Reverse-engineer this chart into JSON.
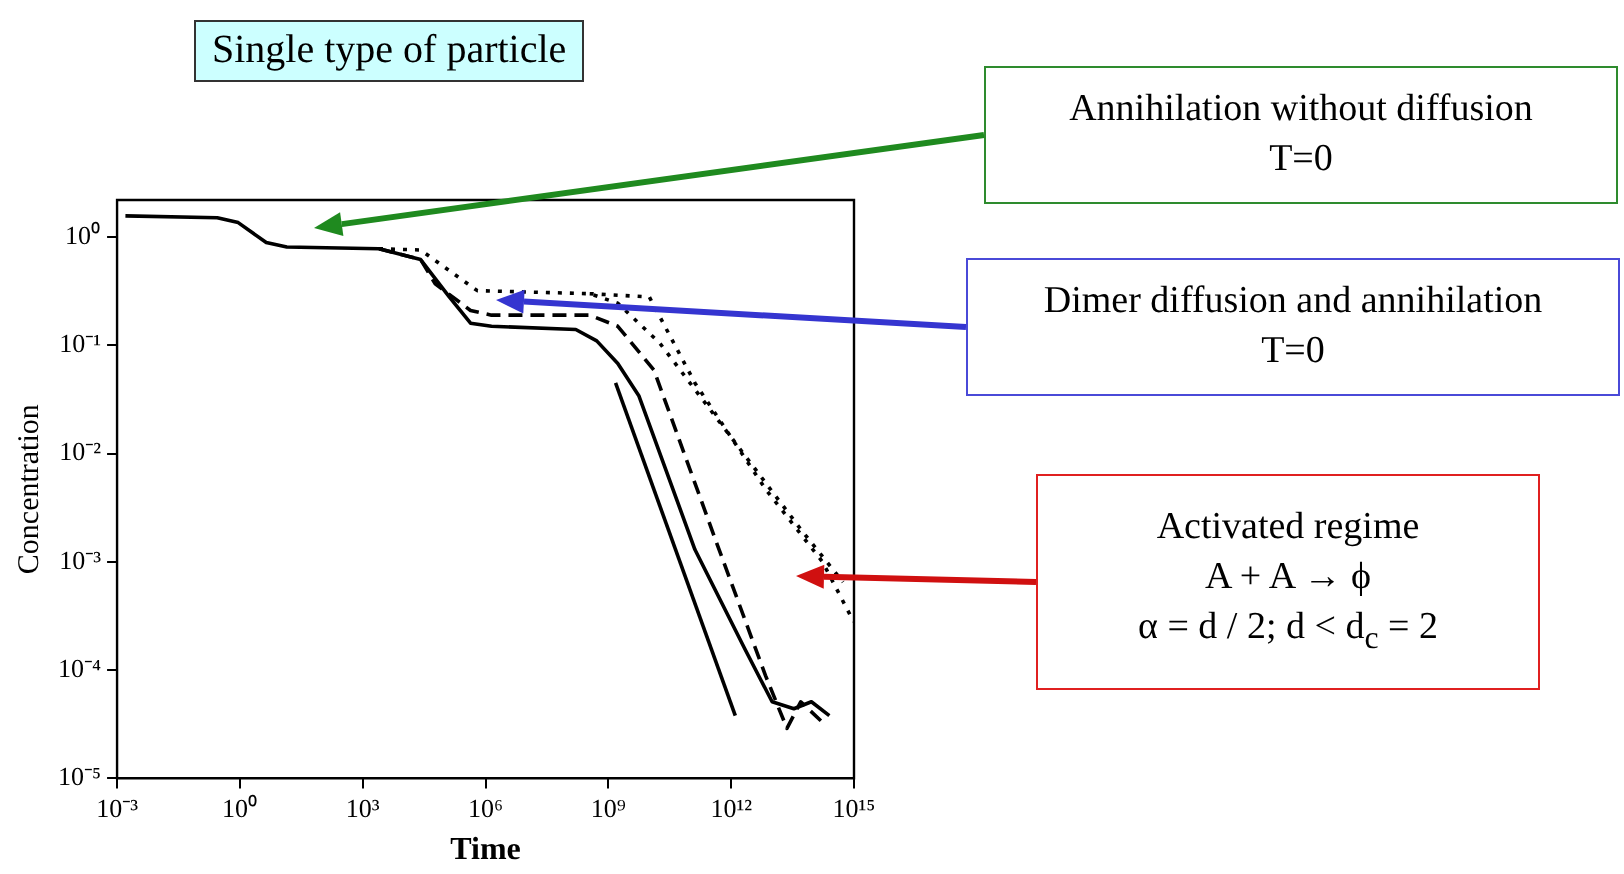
{
  "chart_data": {
    "type": "line",
    "title": "Single type of particle",
    "xlabel": "Time",
    "ylabel": "Concentration",
    "log": "xy",
    "grid": false,
    "legend": false,
    "marker": "none",
    "xlim": [
      0.001,
      1000000000000000.0
    ],
    "xticks": [
      {
        "value": 0.001,
        "label": "10⁻³"
      },
      {
        "value": 1,
        "label": "10⁰"
      },
      {
        "value": 1000,
        "label": "10³"
      },
      {
        "value": 1000000,
        "label": "10⁶"
      },
      {
        "value": 1000000000,
        "label": "10⁹"
      },
      {
        "value": 1000000000000,
        "label": "10¹²"
      },
      {
        "value": 1000000000000000.0,
        "label": "10¹⁵"
      }
    ],
    "ylim": [
      1e-05,
      2.2
    ],
    "yticks": [
      {
        "value": 1e-05,
        "label": "10⁻⁵"
      },
      {
        "value": 0.0001,
        "label": "10⁻⁴"
      },
      {
        "value": 0.001,
        "label": "10⁻³"
      },
      {
        "value": 0.01,
        "label": "10⁻²"
      },
      {
        "value": 0.1,
        "label": "10⁻¹"
      },
      {
        "value": 1,
        "label": "10⁰"
      }
    ],
    "series": [
      {
        "color": "#000000",
        "line_style": "solid",
        "x": [
          0.0016,
          0.28,
          0.91,
          4.4,
          14,
          2500,
          26000,
          130000,
          430000,
          1400000,
          160000000,
          520000000,
          1700000000,
          5600000000,
          130000000000,
          2100000000000,
          10000000000000,
          34000000000000,
          91000000000000,
          250000000000000
        ],
        "values": [
          1.57,
          1.51,
          1.36,
          0.89,
          0.81,
          0.78,
          0.62,
          0.28,
          0.16,
          0.15,
          0.14,
          0.11,
          0.068,
          0.034,
          0.0013,
          0.00016,
          5.1e-05,
          4.4e-05,
          5.1e-05,
          3.8e-05
        ]
      },
      {
        "color": "#000000",
        "line_style": "dashed",
        "x": [
          2500,
          26000,
          59000,
          430000,
          1400000,
          350000000,
          1700000000,
          13000000000,
          440000000000,
          6900000000000,
          23000000000000,
          50000000000000,
          170000000000000
        ],
        "values": [
          0.78,
          0.62,
          0.37,
          0.21,
          0.19,
          0.19,
          0.15,
          0.059,
          0.0015,
          8.9e-05,
          2.9e-05,
          5.1e-05,
          3.3e-05
        ]
      },
      {
        "color": "#000000",
        "line_style": "dotted",
        "x": [
          2500,
          26000,
          130000,
          630000,
          350000000,
          1700000000,
          18000000000,
          950000000000,
          50000000000000,
          540000000000000
        ],
        "values": [
          0.78,
          0.76,
          0.49,
          0.32,
          0.3,
          0.245,
          0.105,
          0.0145,
          0.002,
          0.00065
        ]
      },
      {
        "color": "#000000",
        "line_style": "dotted",
        "x": [
          350000000,
          10000000000,
          130000000000,
          6900000000000,
          170000000000000,
          980000000000000
        ],
        "values": [
          0.3,
          0.28,
          0.045,
          0.0047,
          0.001,
          0.00028
        ]
      },
      {
        "color": "#000000",
        "line_style": "solid",
        "x": [
          1500000000,
          1260000000000
        ],
        "values": [
          0.045,
          3.8e-05
        ]
      }
    ],
    "annotations": [
      "Annihilation without diffusion\nT=0",
      "Dimer diffusion and annihilation\nT=0",
      "Activated regime\nA + A → ϕ\nα = d / 2; d < d$_{c}$ = 2"
    ]
  }
}
